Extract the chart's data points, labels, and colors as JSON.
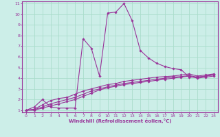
{
  "xlabel": "Windchill (Refroidissement éolien,°C)",
  "bg_color": "#cceee8",
  "line_color": "#993399",
  "grid_color": "#aaddcc",
  "xlim": [
    -0.5,
    23.5
  ],
  "ylim": [
    0.8,
    11.2
  ],
  "xticks": [
    0,
    1,
    2,
    3,
    4,
    5,
    6,
    7,
    8,
    9,
    10,
    11,
    12,
    13,
    14,
    15,
    16,
    17,
    18,
    19,
    20,
    21,
    22,
    23
  ],
  "yticks": [
    1,
    2,
    3,
    4,
    5,
    6,
    7,
    8,
    9,
    10,
    11
  ],
  "lines": [
    {
      "x": [
        0,
        1,
        2,
        3,
        4,
        5,
        6,
        7,
        8,
        9,
        10,
        11,
        12,
        13,
        14,
        15,
        16,
        17,
        18,
        19,
        20,
        21,
        22,
        23
      ],
      "y": [
        1,
        1.3,
        2.0,
        1.3,
        1.2,
        1.2,
        1.2,
        7.7,
        6.8,
        4.2,
        10.1,
        10.2,
        11.0,
        9.4,
        6.6,
        5.9,
        5.4,
        5.1,
        4.9,
        4.8,
        4.1,
        4.1,
        4.2,
        4.3
      ]
    },
    {
      "x": [
        0,
        1,
        2,
        3,
        4,
        5,
        6,
        7,
        8,
        9,
        10,
        11,
        12,
        13,
        14,
        15,
        16,
        17,
        18,
        19,
        20,
        21,
        22,
        23
      ],
      "y": [
        1,
        1.1,
        1.5,
        1.9,
        2.1,
        2.2,
        2.5,
        2.8,
        3.0,
        3.2,
        3.4,
        3.5,
        3.7,
        3.8,
        3.9,
        4.0,
        4.1,
        4.15,
        4.2,
        4.3,
        4.4,
        4.2,
        4.3,
        4.4
      ]
    },
    {
      "x": [
        0,
        1,
        2,
        3,
        4,
        5,
        6,
        7,
        8,
        9,
        10,
        11,
        12,
        13,
        14,
        15,
        16,
        17,
        18,
        19,
        20,
        21,
        22,
        23
      ],
      "y": [
        1,
        1.05,
        1.3,
        1.6,
        1.8,
        2.0,
        2.2,
        2.5,
        2.8,
        3.0,
        3.2,
        3.35,
        3.5,
        3.6,
        3.7,
        3.8,
        3.9,
        4.0,
        4.1,
        4.15,
        4.25,
        4.1,
        4.2,
        4.35
      ]
    },
    {
      "x": [
        0,
        1,
        2,
        3,
        4,
        5,
        6,
        7,
        8,
        9,
        10,
        11,
        12,
        13,
        14,
        15,
        16,
        17,
        18,
        19,
        20,
        21,
        22,
        23
      ],
      "y": [
        1,
        1.0,
        1.2,
        1.4,
        1.6,
        1.8,
        2.0,
        2.3,
        2.6,
        2.9,
        3.1,
        3.25,
        3.4,
        3.5,
        3.6,
        3.7,
        3.8,
        3.9,
        4.0,
        4.1,
        4.2,
        4.0,
        4.1,
        4.2
      ]
    }
  ]
}
